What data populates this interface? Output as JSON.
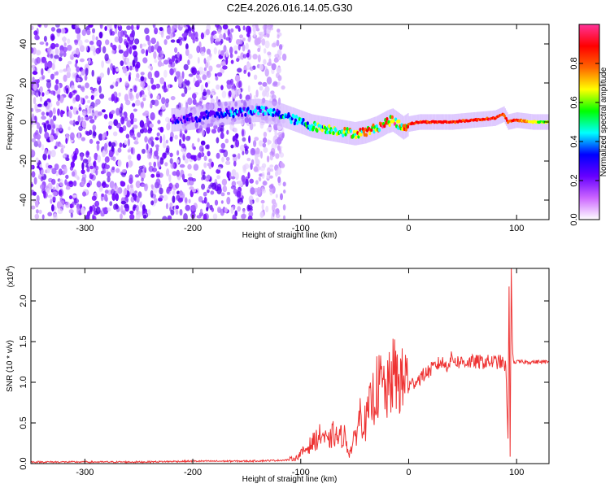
{
  "title": "C2E4.2026.016.14.05.G30",
  "chart_data": [
    {
      "type": "heatmap",
      "xlabel": "Height of straight line (km)",
      "ylabel": "Frequency (Hz)",
      "xlim": [
        -350,
        130
      ],
      "ylim": [
        -50,
        50
      ],
      "x_ticks": [
        -300,
        -200,
        -100,
        0,
        100
      ],
      "x_tick_labels": [
        "-300",
        "-200",
        "-100",
        "0",
        "100"
      ],
      "y_ticks": [
        -40,
        -20,
        0,
        20,
        40
      ],
      "y_tick_labels": [
        "-40",
        "-20",
        "0",
        "20",
        "40"
      ],
      "colorbar": {
        "label": "Normalized spectral amplitude",
        "range": [
          0,
          1
        ],
        "ticks": [
          0,
          0.2,
          0.4,
          0.6,
          0.8
        ],
        "tick_labels": [
          "0.0",
          "0.2",
          "0.4",
          "0.6",
          "0.8"
        ],
        "colormap": [
          "#ffffff",
          "#cc66ff",
          "#6600ff",
          "#0000ff",
          "#00ffff",
          "#00ff00",
          "#ffff00",
          "#ff6600",
          "#ff0000",
          "#ff3399"
        ]
      },
      "noise_region_x": [
        -350,
        -115
      ],
      "ridge": {
        "x": [
          -220,
          -200,
          -180,
          -160,
          -140,
          -120,
          -100,
          -90,
          -80,
          -70,
          -60,
          -50,
          -40,
          -30,
          -20,
          -15,
          -10,
          -5,
          0,
          10,
          20,
          40,
          60,
          80,
          88,
          92,
          100,
          115,
          130
        ],
        "y": [
          1,
          2,
          4,
          5,
          6,
          4,
          0,
          -2,
          -3,
          -4,
          -5,
          -6,
          -5,
          -3,
          0,
          1,
          -1,
          -3,
          -1,
          0,
          0,
          0,
          1,
          2,
          4,
          0,
          1,
          0,
          0
        ],
        "amplitude": [
          0.25,
          0.3,
          0.35,
          0.4,
          0.45,
          0.5,
          0.55,
          0.6,
          0.65,
          0.7,
          0.75,
          0.8,
          0.85,
          0.85,
          0.9,
          0.95,
          0.85,
          0.8,
          0.9,
          0.95,
          0.95,
          0.95,
          0.95,
          0.95,
          0.9,
          0.85,
          0.9,
          0.7,
          0.65
        ]
      }
    },
    {
      "type": "line",
      "xlabel": "Height of straight line (km)",
      "ylabel": "SNR (10 * v/v)",
      "y_scale_label": "(x10",
      "y_scale_exponent": "4",
      "y_scale_close": ")",
      "xlim": [
        -350,
        130
      ],
      "ylim": [
        0,
        2.4
      ],
      "x_ticks": [
        -300,
        -200,
        -100,
        0,
        100
      ],
      "x_tick_labels": [
        "-300",
        "-200",
        "-100",
        "0",
        "100"
      ],
      "y_ticks": [
        0,
        0.5,
        1.0,
        1.5,
        2.0
      ],
      "y_tick_labels": [
        "0.0",
        "0.5",
        "1.0",
        "1.5",
        "2.0"
      ],
      "color": "#ee3333",
      "series": [
        {
          "x": [
            -350,
            -300,
            -250,
            -200,
            -150,
            -120,
            -105,
            -100,
            -95,
            -90,
            -85,
            -80,
            -75,
            -70,
            -65,
            -60,
            -55,
            -50,
            -45,
            -40,
            -35,
            -30,
            -25,
            -20,
            -15,
            -10,
            -5,
            0,
            5,
            10,
            15,
            20,
            25,
            30,
            35,
            40,
            45,
            50,
            55,
            60,
            65,
            70,
            75,
            80,
            85,
            90,
            92,
            93,
            94,
            95,
            96,
            97,
            100,
            105,
            110,
            120,
            130
          ],
          "y": [
            0.02,
            0.02,
            0.02,
            0.03,
            0.03,
            0.04,
            0.05,
            0.1,
            0.15,
            0.2,
            0.25,
            0.3,
            0.2,
            0.3,
            0.25,
            0.3,
            0.1,
            0.25,
            0.5,
            0.4,
            0.6,
            0.75,
            0.8,
            0.7,
            0.9,
            0.85,
            0.8,
            0.95,
            1.0,
            1.05,
            1.1,
            1.15,
            1.2,
            1.25,
            1.2,
            1.3,
            1.25,
            1.25,
            1.25,
            1.25,
            1.25,
            1.25,
            1.25,
            1.25,
            1.25,
            1.2,
            0.3,
            2.2,
            0.1,
            2.4,
            1.5,
            1.25,
            1.25,
            1.25,
            1.25,
            1.25,
            1.25
          ]
        }
      ]
    }
  ]
}
